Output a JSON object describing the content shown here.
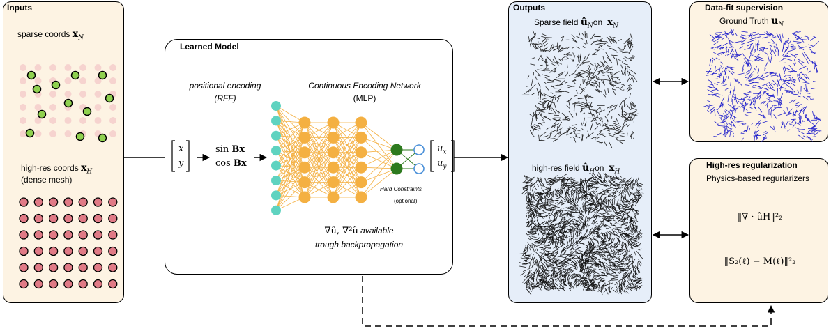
{
  "inputs": {
    "title": "Inputs",
    "sparse_label": "sparse coords",
    "sparse_sym": "x",
    "sparse_sub": "N",
    "dense_label": "high-res coords",
    "dense_sym": "x",
    "dense_sub": "H",
    "dense_note": "(dense mesh)"
  },
  "model": {
    "title": "Learned Model",
    "pe_title": "positional encoding",
    "pe_sub": "(RFF)",
    "cen_title": "Continuous Encoding Network",
    "cen_sub": "(MLP)",
    "vec_in_top": "x",
    "vec_in_bot": "y",
    "enc_sin": "sin",
    "enc_cos": "cos",
    "enc_term": "Bx",
    "vec_out_top": "u",
    "vec_out_top_sub": "x",
    "vec_out_bot": "u",
    "vec_out_bot_sub": "y",
    "hard_constraints": "Hard Constraints",
    "optional": "(optional)",
    "grad_line1_math": "∇û,  ∇²û",
    "grad_line1_text": "available",
    "grad_line2": "trough backpropagation"
  },
  "outputs": {
    "title": "Outputs",
    "sparse_label": "Sparse field",
    "sparse_sym": "û",
    "sparse_sub": "N",
    "sparse_on": "on",
    "sparse_x": "x",
    "sparse_xsub": "N",
    "dense_label": "high-res field",
    "dense_sym": "û",
    "dense_sub": "H",
    "dense_on": "on",
    "dense_x": "x",
    "dense_xsub": "H"
  },
  "supervision": {
    "title": "Data-fit supervision",
    "gt_label": "Ground Truth",
    "gt_sym": "u",
    "gt_sub": "N"
  },
  "regularization": {
    "title": "High-res regularization",
    "subtitle": "Physics-based regurlarizers",
    "term1": "‖∇ · ûH‖²₂",
    "term2": "‖S₂(ℓ) − M(ℓ)‖²₂"
  },
  "colors": {
    "inputs_bg": "#fdf3e3",
    "outputs_bg": "#e6eef9",
    "sparse_point_fill": "#8fd14f",
    "faded_point": "#f6d3cf",
    "dense_point": "#e07a86",
    "input_layer": "#5fd3c0",
    "hidden_layer": "#f4b042",
    "output_layer": "#2d7a1e",
    "constraint_node": "#4a90d9",
    "gt_arrows": "#2222cc"
  }
}
